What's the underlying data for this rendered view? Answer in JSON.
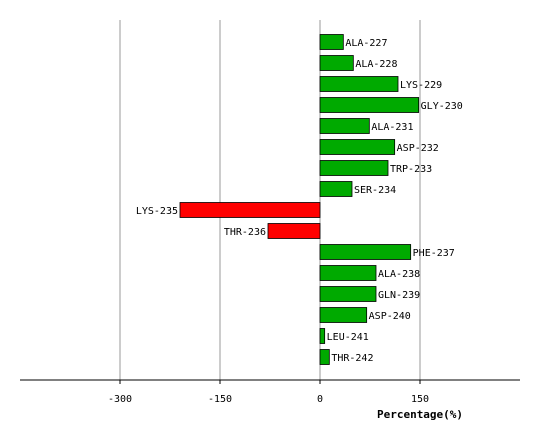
{
  "chart_data": {
    "type": "bar",
    "orientation": "horizontal",
    "xlabel": "Percentage(%)",
    "ylabel": "",
    "xlim": [
      -450,
      300
    ],
    "xticks": [
      -300,
      -150,
      0,
      150
    ],
    "grid": true,
    "categories": [
      "ALA-227",
      "ALA-228",
      "LYS-229",
      "GLY-230",
      "ALA-231",
      "ASP-232",
      "TRP-233",
      "SER-234",
      "LYS-235",
      "THR-236",
      "PHE-237",
      "ALA-238",
      "GLN-239",
      "ASP-240",
      "LEU-241",
      "THR-242"
    ],
    "values": [
      35,
      50,
      117,
      148,
      74,
      112,
      102,
      48,
      -210,
      -78,
      136,
      84,
      84,
      70,
      7,
      14
    ],
    "colors": {
      "positive": "#00aa00",
      "negative": "#ff0000",
      "grid": "#999999",
      "axis": "#000000"
    }
  }
}
